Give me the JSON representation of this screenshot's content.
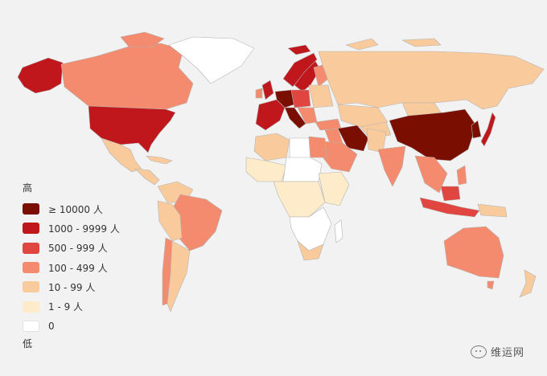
{
  "legend": {
    "high_label": "高",
    "low_label": "低",
    "bins": [
      {
        "label": "≥ 10000 人",
        "color": "#7a0e00"
      },
      {
        "label": "1000 - 9999 人",
        "color": "#c0171c"
      },
      {
        "label": "500 - 999 人",
        "color": "#e0453f"
      },
      {
        "label": "100 - 499 人",
        "color": "#f48b6e"
      },
      {
        "label": "10 - 99 人",
        "color": "#f9cb9c"
      },
      {
        "label": "1 - 9 人",
        "color": "#fdebc9"
      },
      {
        "label": "0",
        "color": "#ffffff"
      }
    ]
  },
  "watermark": {
    "text": "维运网",
    "icon": "wechat-icon"
  }
}
